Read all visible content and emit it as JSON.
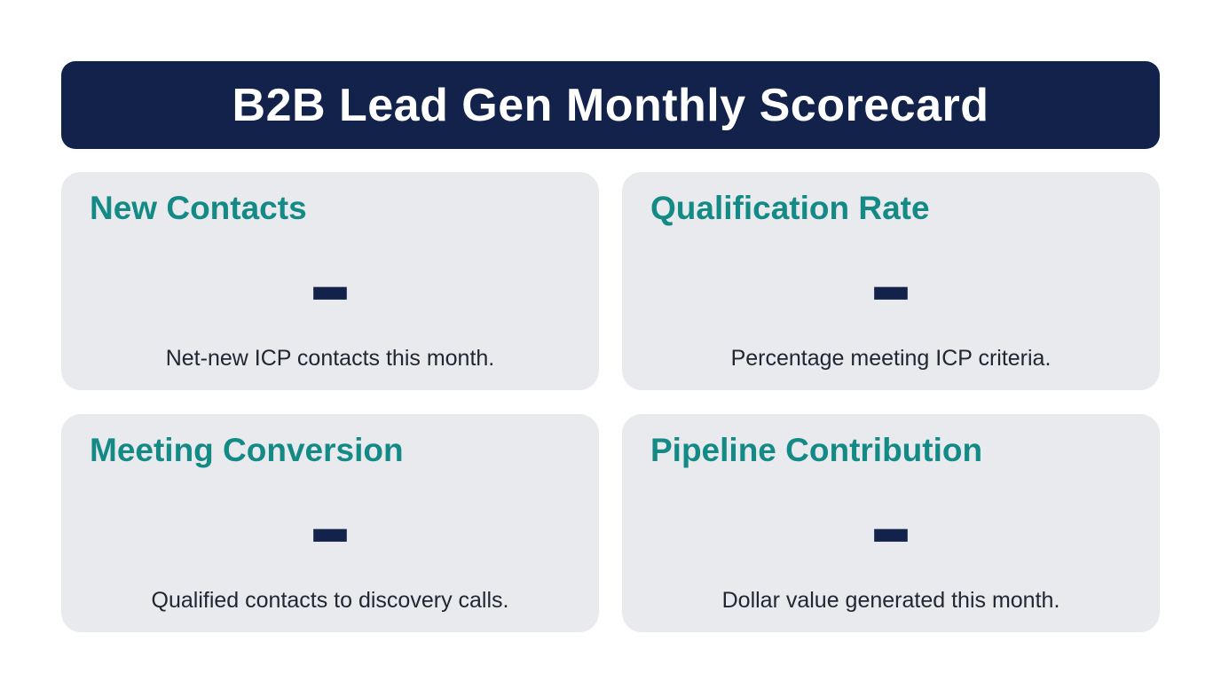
{
  "header": {
    "title": "B2B Lead Gen Monthly Scorecard"
  },
  "cards": [
    {
      "title": "New Contacts",
      "value": "–",
      "description": "Net-new ICP contacts this month."
    },
    {
      "title": "Qualification Rate",
      "value": "–",
      "description": "Percentage meeting ICP criteria."
    },
    {
      "title": "Meeting Conversion",
      "value": "–",
      "description": "Qualified contacts to discovery calls."
    },
    {
      "title": "Pipeline Contribution",
      "value": "–",
      "description": "Dollar value generated this month."
    }
  ]
}
